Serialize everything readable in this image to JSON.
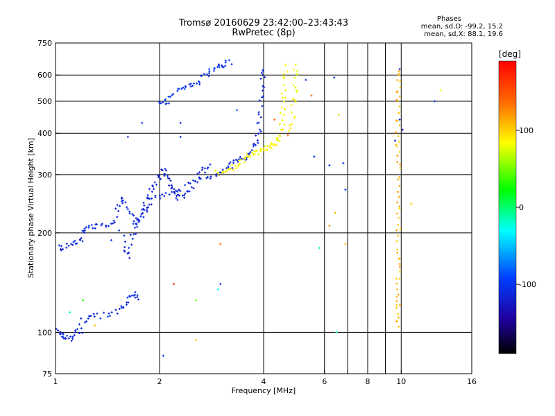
{
  "header": {
    "title": "Tromsø 20160629 23:42:00–23:43:43",
    "subtitle": "RwPretec (8p)"
  },
  "phase_info": {
    "heading": "Phases",
    "line_o": "mean, sd,O: -99.2, 15.2",
    "line_x": "mean, sd,X: 88.1, 19.6"
  },
  "colorbar": {
    "unit": "[deg]",
    "ticks": [
      {
        "value": 100,
        "label": "100"
      },
      {
        "value": 0,
        "label": "0"
      },
      {
        "value": -100,
        "label": "-100"
      }
    ],
    "range": [
      -190,
      190
    ]
  },
  "chart_data": {
    "type": "scatter",
    "xlabel": "Frequency [MHz]",
    "ylabel": "Stationary phase Virtual Height [km]",
    "xscale": "log",
    "yscale": "log",
    "xlim": [
      1,
      16
    ],
    "ylim": [
      75,
      750
    ],
    "xticks": [
      {
        "value": 1,
        "label": "1"
      },
      {
        "value": 2,
        "label": "2"
      },
      {
        "value": 4,
        "label": "4"
      },
      {
        "value": 6,
        "label": "6"
      },
      {
        "value": 8,
        "label": "8"
      },
      {
        "value": 10,
        "label": "10"
      },
      {
        "value": 16,
        "label": "16"
      }
    ],
    "xticks_unlabeled": [
      7,
      9
    ],
    "yticks": [
      {
        "value": 75,
        "label": "75"
      },
      {
        "value": 100,
        "label": "100"
      },
      {
        "value": 200,
        "label": "200"
      },
      {
        "value": 300,
        "label": "300"
      },
      {
        "value": 400,
        "label": "400"
      },
      {
        "value": 500,
        "label": "500"
      },
      {
        "value": 600,
        "label": "600"
      },
      {
        "value": 750,
        "label": "750"
      }
    ],
    "grid": true,
    "color_encoding": "phase in degrees",
    "traces": [
      {
        "phase": -110,
        "points": [
          [
            1.0,
            103
          ],
          [
            1.02,
            100
          ],
          [
            1.04,
            98
          ],
          [
            1.07,
            97
          ],
          [
            1.1,
            96
          ],
          [
            1.14,
            98
          ],
          [
            1.18,
            100
          ]
        ]
      },
      {
        "phase": -105,
        "points": [
          [
            1.15,
            101
          ],
          [
            1.2,
            108
          ],
          [
            1.25,
            111
          ],
          [
            1.3,
            112
          ],
          [
            1.4,
            113
          ],
          [
            1.5,
            114
          ],
          [
            1.55,
            118
          ],
          [
            1.6,
            122
          ],
          [
            1.65,
            128
          ],
          [
            1.7,
            132
          ],
          [
            1.75,
            125
          ]
        ]
      },
      {
        "phase": -108,
        "points": [
          [
            1.0,
            180
          ],
          [
            1.05,
            181
          ],
          [
            1.1,
            183
          ],
          [
            1.15,
            186
          ],
          [
            1.18,
            192
          ],
          [
            1.2,
            200
          ],
          [
            1.22,
            207
          ],
          [
            1.28,
            208
          ],
          [
            1.35,
            209
          ],
          [
            1.42,
            212
          ],
          [
            1.48,
            222
          ],
          [
            1.52,
            240
          ],
          [
            1.55,
            258
          ],
          [
            1.6,
            240
          ],
          [
            1.65,
            225
          ],
          [
            1.7,
            215
          ],
          [
            1.75,
            220
          ],
          [
            1.8,
            230
          ],
          [
            1.85,
            240
          ],
          [
            1.9,
            250
          ],
          [
            2.0,
            255
          ],
          [
            2.1,
            260
          ],
          [
            2.2,
            265
          ],
          [
            2.3,
            275
          ],
          [
            2.5,
            285
          ],
          [
            2.7,
            292
          ],
          [
            2.9,
            300
          ],
          [
            3.0,
            305
          ],
          [
            3.1,
            310
          ],
          [
            3.2,
            320
          ],
          [
            3.3,
            330
          ],
          [
            3.4,
            332
          ],
          [
            3.5,
            335
          ],
          [
            3.6,
            342
          ],
          [
            3.7,
            355
          ],
          [
            3.8,
            375
          ],
          [
            3.85,
            395
          ],
          [
            3.9,
            430
          ],
          [
            3.93,
            480
          ],
          [
            3.95,
            540
          ],
          [
            3.97,
            590
          ],
          [
            3.99,
            630
          ]
        ]
      },
      {
        "phase": -112,
        "points": [
          [
            1.55,
            200
          ],
          [
            1.6,
            180
          ],
          [
            1.62,
            170
          ],
          [
            1.65,
            190
          ],
          [
            1.7,
            205
          ],
          [
            1.75,
            215
          ],
          [
            1.8,
            240
          ],
          [
            1.85,
            255
          ],
          [
            1.9,
            270
          ],
          [
            1.95,
            285
          ],
          [
            2.0,
            300
          ],
          [
            2.05,
            310
          ],
          [
            2.1,
            295
          ],
          [
            2.15,
            280
          ],
          [
            2.2,
            270
          ],
          [
            2.25,
            260
          ],
          [
            2.3,
            255
          ],
          [
            2.4,
            265
          ],
          [
            2.5,
            280
          ],
          [
            2.6,
            300
          ],
          [
            2.7,
            310
          ],
          [
            2.8,
            318
          ]
        ]
      },
      {
        "phase": -100,
        "points": [
          [
            2.0,
            500
          ],
          [
            2.05,
            498
          ],
          [
            2.1,
            502
          ],
          [
            2.2,
            530
          ],
          [
            2.3,
            545
          ],
          [
            2.4,
            555
          ],
          [
            2.5,
            560
          ],
          [
            2.6,
            575
          ],
          [
            2.7,
            595
          ],
          [
            2.8,
            610
          ],
          [
            2.9,
            625
          ],
          [
            3.0,
            640
          ],
          [
            3.1,
            650
          ],
          [
            3.2,
            655
          ]
        ]
      },
      {
        "phase": 100,
        "points": [
          [
            2.9,
            302
          ],
          [
            3.0,
            305
          ],
          [
            3.1,
            308
          ],
          [
            3.2,
            312
          ],
          [
            3.3,
            318
          ],
          [
            3.4,
            325
          ],
          [
            3.5,
            333
          ],
          [
            3.6,
            340
          ],
          [
            3.7,
            345
          ],
          [
            3.8,
            350
          ],
          [
            3.9,
            355
          ],
          [
            4.0,
            360
          ],
          [
            4.1,
            363
          ],
          [
            4.2,
            368
          ],
          [
            4.3,
            372
          ],
          [
            4.4,
            380
          ],
          [
            4.5,
            400
          ],
          [
            4.52,
            430
          ],
          [
            4.55,
            470
          ],
          [
            4.57,
            520
          ],
          [
            4.6,
            580
          ],
          [
            4.62,
            640
          ]
        ]
      },
      {
        "phase": 98,
        "points": [
          [
            4.8,
            400
          ],
          [
            4.85,
            440
          ],
          [
            4.9,
            490
          ],
          [
            4.92,
            540
          ],
          [
            4.95,
            600
          ],
          [
            4.97,
            640
          ]
        ]
      },
      {
        "phase": 120,
        "points": [
          [
            9.8,
            105
          ],
          [
            9.8,
            115
          ],
          [
            9.8,
            125
          ],
          [
            9.8,
            140
          ],
          [
            9.8,
            155
          ],
          [
            9.8,
            175
          ],
          [
            9.8,
            200
          ],
          [
            9.8,
            230
          ],
          [
            9.8,
            260
          ],
          [
            9.8,
            300
          ],
          [
            9.8,
            340
          ],
          [
            9.8,
            380
          ],
          [
            9.8,
            430
          ],
          [
            9.8,
            480
          ],
          [
            9.8,
            530
          ],
          [
            9.8,
            580
          ],
          [
            9.8,
            625
          ]
        ]
      }
    ],
    "scattered_points": [
      {
        "x": 1.62,
        "y": 390,
        "phase": -100
      },
      {
        "x": 1.78,
        "y": 430,
        "phase": -95
      },
      {
        "x": 2.3,
        "y": 390,
        "phase": -110
      },
      {
        "x": 3.35,
        "y": 470,
        "phase": -85
      },
      {
        "x": 5.3,
        "y": 580,
        "phase": -100
      },
      {
        "x": 6.4,
        "y": 590,
        "phase": -100
      },
      {
        "x": 6.6,
        "y": 455,
        "phase": 110
      },
      {
        "x": 6.2,
        "y": 320,
        "phase": -100
      },
      {
        "x": 6.8,
        "y": 325,
        "phase": -100
      },
      {
        "x": 6.9,
        "y": 270,
        "phase": -100
      },
      {
        "x": 6.45,
        "y": 230,
        "phase": 120
      },
      {
        "x": 6.2,
        "y": 210,
        "phase": 130
      },
      {
        "x": 6.9,
        "y": 185,
        "phase": 120
      },
      {
        "x": 5.8,
        "y": 180,
        "phase": -5
      },
      {
        "x": 3.0,
        "y": 185,
        "phase": 140
      },
      {
        "x": 2.3,
        "y": 430,
        "phase": -110
      },
      {
        "x": 2.2,
        "y": 140,
        "phase": 170
      },
      {
        "x": 2.55,
        "y": 125,
        "phase": 60
      },
      {
        "x": 2.55,
        "y": 95,
        "phase": 110
      },
      {
        "x": 2.95,
        "y": 135,
        "phase": -20
      },
      {
        "x": 3.0,
        "y": 140,
        "phase": -110
      },
      {
        "x": 2.05,
        "y": 85,
        "phase": -100
      },
      {
        "x": 6.5,
        "y": 100,
        "phase": -5
      },
      {
        "x": 9.6,
        "y": 380,
        "phase": -110
      },
      {
        "x": 9.9,
        "y": 440,
        "phase": -110
      },
      {
        "x": 10.1,
        "y": 410,
        "phase": -120
      },
      {
        "x": 9.9,
        "y": 625,
        "phase": -110
      },
      {
        "x": 10.7,
        "y": 245,
        "phase": 110
      },
      {
        "x": 12.5,
        "y": 500,
        "phase": -100
      },
      {
        "x": 13.0,
        "y": 540,
        "phase": 100
      },
      {
        "x": 4.3,
        "y": 440,
        "phase": 140
      },
      {
        "x": 4.7,
        "y": 395,
        "phase": 150
      },
      {
        "x": 5.5,
        "y": 520,
        "phase": 140
      },
      {
        "x": 5.6,
        "y": 340,
        "phase": -100
      },
      {
        "x": 1.45,
        "y": 190,
        "phase": -100
      },
      {
        "x": 1.2,
        "y": 125,
        "phase": 40
      },
      {
        "x": 1.1,
        "y": 115,
        "phase": -5
      },
      {
        "x": 1.3,
        "y": 105,
        "phase": 120
      }
    ]
  }
}
